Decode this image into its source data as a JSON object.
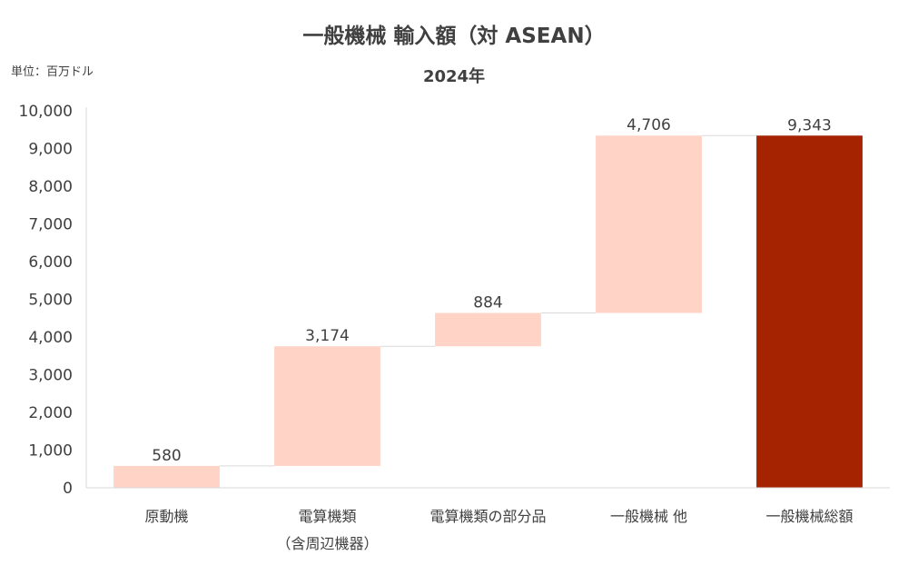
{
  "unit_label": "単位：百万ドル",
  "colors": {
    "increment_bar": "#FFD3C6",
    "total_bar": "#A52300",
    "connector": "#D9D9D9",
    "axis": "#D9D9D9"
  },
  "chart_data": {
    "type": "bar",
    "subtype": "waterfall",
    "title": "一般機械 輸入額（対 ASEAN）",
    "subtitle": "2024年",
    "xlabel": "",
    "ylabel": "",
    "ylim": [
      0,
      10000
    ],
    "yticks": [
      "0",
      "1,000",
      "2,000",
      "3,000",
      "4,000",
      "5,000",
      "6,000",
      "7,000",
      "8,000",
      "9,000",
      "10,000"
    ],
    "grid": false,
    "legend": "none",
    "categories": [
      [
        "原動機"
      ],
      [
        "電算機類",
        "（含周辺機器）"
      ],
      [
        "電算機類の部分品"
      ],
      [
        "一般機械 他"
      ],
      [
        "一般機械総額"
      ]
    ],
    "values": [
      580,
      3174,
      884,
      4706,
      9343
    ],
    "value_labels": [
      "580",
      "3,174",
      "884",
      "4,706",
      "9,343"
    ],
    "is_total": [
      false,
      false,
      false,
      false,
      true
    ]
  }
}
